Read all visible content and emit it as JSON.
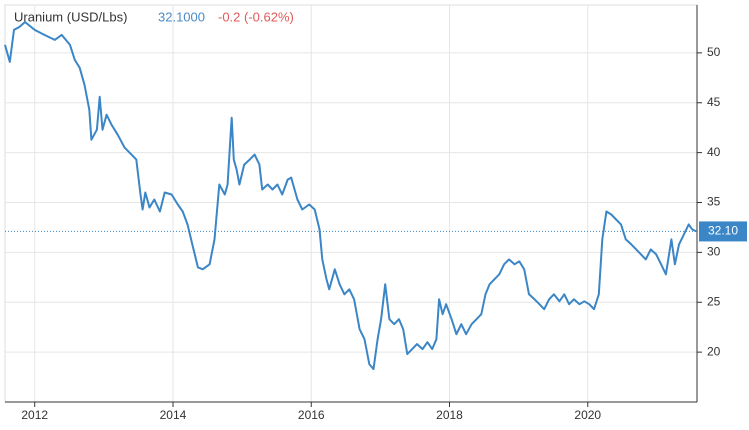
{
  "chart_data": {
    "type": "line",
    "title": "Uranium (USD/Lbs)",
    "price": "32.1000",
    "change": "-0.2 (-0.62%)",
    "x": [
      2011.57,
      2011.64,
      2011.7,
      2011.78,
      2011.86,
      2012.0,
      2012.14,
      2012.29,
      2012.39,
      2012.51,
      2012.58,
      2012.65,
      2012.72,
      2012.79,
      2012.82,
      2012.9,
      2012.94,
      2012.98,
      2013.04,
      2013.11,
      2013.2,
      2013.3,
      2013.4,
      2013.47,
      2013.53,
      2013.56,
      2013.6,
      2013.66,
      2013.73,
      2013.81,
      2013.88,
      2013.98,
      2014.07,
      2014.14,
      2014.21,
      2014.28,
      2014.36,
      2014.43,
      2014.53,
      2014.6,
      2014.67,
      2014.75,
      2014.79,
      2014.82,
      2014.85,
      2014.88,
      2014.92,
      2014.96,
      2015.03,
      2015.11,
      2015.18,
      2015.25,
      2015.29,
      2015.37,
      2015.44,
      2015.51,
      2015.58,
      2015.66,
      2015.71,
      2015.8,
      2015.87,
      2015.97,
      2016.05,
      2016.12,
      2016.16,
      2016.22,
      2016.26,
      2016.34,
      2016.41,
      2016.48,
      2016.55,
      2016.62,
      2016.7,
      2016.77,
      2016.84,
      2016.9,
      2016.96,
      2017.01,
      2017.07,
      2017.13,
      2017.2,
      2017.27,
      2017.33,
      2017.39,
      2017.46,
      2017.53,
      2017.61,
      2017.68,
      2017.75,
      2017.81,
      2017.85,
      2017.9,
      2017.95,
      2018.03,
      2018.1,
      2018.17,
      2018.24,
      2018.32,
      2018.39,
      2018.46,
      2018.52,
      2018.58,
      2018.65,
      2018.72,
      2018.79,
      2018.86,
      2018.94,
      2019.01,
      2019.08,
      2019.15,
      2019.23,
      2019.3,
      2019.37,
      2019.44,
      2019.51,
      2019.59,
      2019.66,
      2019.73,
      2019.8,
      2019.88,
      2019.95,
      2020.02,
      2020.09,
      2020.16,
      2020.21,
      2020.27,
      2020.34,
      2020.41,
      2020.48,
      2020.55,
      2020.63,
      2020.7,
      2020.77,
      2020.84,
      2020.91,
      2020.99,
      2021.06,
      2021.13,
      2021.21,
      2021.26,
      2021.32,
      2021.39,
      2021.46,
      2021.51,
      2021.57
    ],
    "series": [
      {
        "name": "Uranium (USD/Lbs)",
        "color": "#3b86c6",
        "values": [
          50.8,
          49.1,
          52.3,
          52.6,
          53.1,
          52.3,
          51.8,
          51.3,
          51.8,
          50.8,
          49.3,
          48.5,
          46.8,
          44.3,
          41.3,
          42.3,
          45.6,
          42.3,
          43.8,
          42.8,
          41.8,
          40.5,
          39.8,
          39.3,
          35.8,
          34.3,
          36.0,
          34.5,
          35.3,
          34.1,
          36.0,
          35.8,
          34.8,
          34.1,
          32.8,
          30.8,
          28.5,
          28.3,
          28.8,
          31.3,
          36.8,
          35.8,
          36.8,
          40.3,
          43.5,
          39.3,
          38.3,
          36.8,
          38.8,
          39.3,
          39.8,
          38.8,
          36.3,
          36.8,
          36.3,
          36.8,
          35.8,
          37.3,
          37.5,
          35.3,
          34.3,
          34.8,
          34.3,
          32.3,
          29.3,
          27.3,
          26.3,
          28.3,
          26.8,
          25.8,
          26.3,
          25.3,
          22.3,
          21.3,
          18.8,
          18.3,
          21.3,
          23.3,
          26.8,
          23.3,
          22.8,
          23.3,
          22.3,
          19.8,
          20.3,
          20.8,
          20.3,
          21.0,
          20.3,
          21.3,
          25.3,
          23.8,
          24.8,
          23.3,
          21.8,
          22.8,
          21.8,
          22.8,
          23.3,
          23.8,
          25.8,
          26.8,
          27.3,
          27.8,
          28.8,
          29.3,
          28.8,
          29.1,
          28.3,
          25.8,
          25.3,
          24.8,
          24.3,
          25.3,
          25.8,
          25.1,
          25.8,
          24.8,
          25.3,
          24.8,
          25.1,
          24.8,
          24.3,
          25.8,
          31.3,
          34.1,
          33.8,
          33.3,
          32.8,
          31.3,
          30.8,
          30.3,
          29.8,
          29.3,
          30.3,
          29.8,
          28.8,
          27.8,
          31.3,
          28.8,
          30.8,
          31.8,
          32.8,
          32.3,
          32.1
        ]
      }
    ],
    "last_value": 32.1,
    "last_value_label": "32.10",
    "xlim": [
      2011.57,
      2021.58
    ],
    "xticks": [
      2012,
      2014,
      2016,
      2018,
      2020
    ],
    "ylim": [
      15,
      54.8
    ],
    "yticks": [
      20,
      25,
      30,
      35,
      40,
      45,
      50
    ],
    "grid": true
  }
}
